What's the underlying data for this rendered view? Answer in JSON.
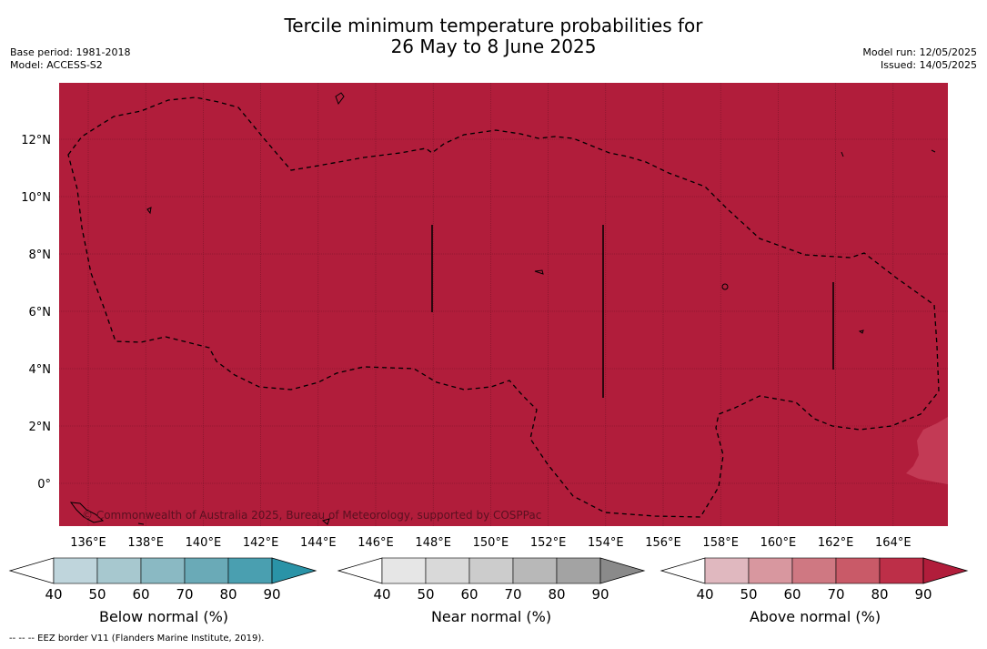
{
  "title_line1": "Tercile minimum temperature probabilities for",
  "title_line2": "26 May to 8 June 2025",
  "left_meta": {
    "base_period": "Base period: 1981-2018",
    "model": "Model: ACCESS-S2"
  },
  "right_meta": {
    "model_run": "Model run: 12/05/2025",
    "issued": "Issued: 14/05/2025"
  },
  "map": {
    "lon_ticks": [
      "136°E",
      "138°E",
      "140°E",
      "142°E",
      "144°E",
      "146°E",
      "148°E",
      "150°E",
      "152°E",
      "154°E",
      "156°E",
      "158°E",
      "160°E",
      "162°E",
      "164°E"
    ],
    "lat_ticks": [
      "12°N",
      "10°N",
      "8°N",
      "6°N",
      "4°N",
      "2°N",
      "0°"
    ],
    "background_category": "Above normal",
    "background_color": "#b11d3b",
    "copyright": "© Commonwealth of Australia 2025, Bureau of Meteorology, supported by COSPPac"
  },
  "colorbars": [
    {
      "label": "Below normal (%)",
      "ticks": [
        "40",
        "50",
        "60",
        "70",
        "80",
        "90"
      ],
      "colors": [
        "#bfd5dc",
        "#a7c8cf",
        "#8ab9c3",
        "#6aaab7",
        "#4a9fb0",
        "#2a93a7"
      ]
    },
    {
      "label": "Near normal (%)",
      "ticks": [
        "40",
        "50",
        "60",
        "70",
        "80",
        "90"
      ],
      "colors": [
        "#e6e6e6",
        "#d9d9d9",
        "#cccccc",
        "#b8b8b8",
        "#a3a3a3",
        "#8a8a8a"
      ]
    },
    {
      "label": "Above normal (%)",
      "ticks": [
        "40",
        "50",
        "60",
        "70",
        "80",
        "90"
      ],
      "colors": [
        "#e0b8bf",
        "#d8979f",
        "#cf7882",
        "#c95a68",
        "#bd2f48",
        "#b11d3b"
      ]
    }
  ],
  "footnote": "--  --  -- EEZ border V11 (Flanders Marine Institute, 2019)."
}
